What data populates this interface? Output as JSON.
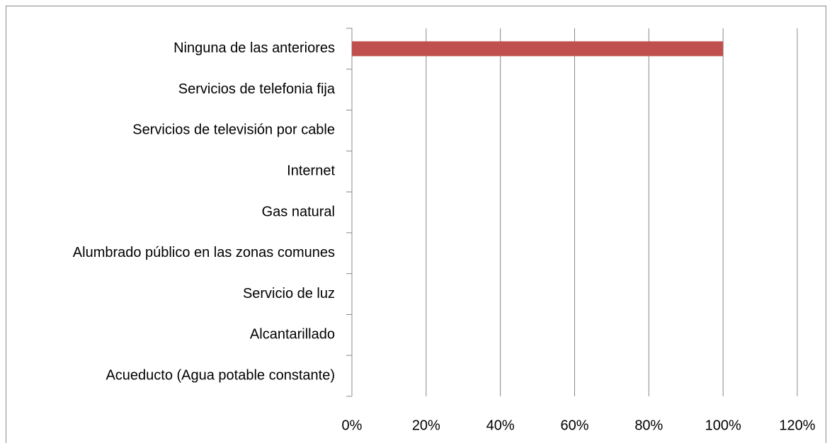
{
  "chart_data": {
    "type": "hbar",
    "categories": [
      "Ninguna de las anteriores",
      "Servicios de telefonia fija",
      "Servicios de televisión por cable",
      "Internet",
      "Gas natural",
      "Alumbrado público en las zonas comunes",
      "Servicio de luz",
      "Alcantarillado",
      "Acueducto (Agua potable constante)"
    ],
    "values": [
      100,
      0,
      0,
      0,
      0,
      0,
      0,
      0,
      0
    ],
    "color": "#c0504d",
    "xlim": [
      0,
      120
    ],
    "xticks": [
      {
        "value": 0,
        "label": "0%"
      },
      {
        "value": 20,
        "label": "20%"
      },
      {
        "value": 40,
        "label": "40%"
      },
      {
        "value": 60,
        "label": "60%"
      },
      {
        "value": 80,
        "label": "80%"
      },
      {
        "value": 100,
        "label": "100%"
      },
      {
        "value": 120,
        "label": "120%"
      }
    ],
    "grid": true
  }
}
